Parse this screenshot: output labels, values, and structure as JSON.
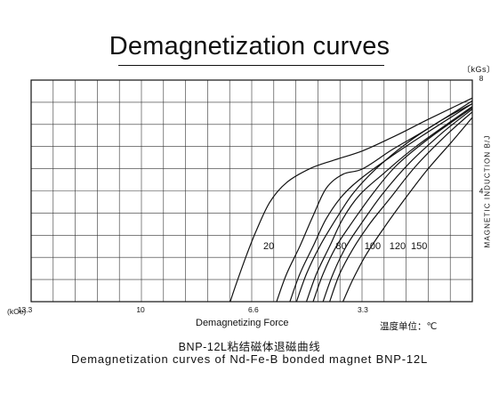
{
  "title": "Demagnetization curves",
  "caption_cn": "BNP-12L粘结磁体退磁曲线",
  "caption_en": "Demagnetization curves of Nd-Fe-B bonded magnet BNP-12L",
  "temperature_note": "温度单位：℃",
  "colors": {
    "line": "#111111",
    "grid": "#333333",
    "background": "#ffffff"
  },
  "chart_data": {
    "type": "line",
    "title": "Demagnetization curves",
    "xlabel": "Demagnetizing Force",
    "x_units": "(kOe)",
    "ylabel": "MAGNETIC INDUCTION B/J",
    "y_units": "〔kGs〕",
    "x_reversed": true,
    "xlim": [
      13.3,
      0
    ],
    "ylim": [
      0,
      8
    ],
    "x_ticks": [
      13.3,
      10,
      6.6,
      3.3
    ],
    "x_tick_labels": [
      "13.3",
      "10",
      "6.6",
      "3.3"
    ],
    "y_ticks": [
      4,
      8
    ],
    "y_tick_labels": [
      "4",
      "8"
    ],
    "grid": true,
    "series": [
      {
        "name": "20",
        "points": [
          [
            7.3,
            0
          ],
          [
            7.1,
            0.7
          ],
          [
            6.8,
            1.7
          ],
          [
            6.5,
            2.6
          ],
          [
            6.1,
            3.6
          ],
          [
            5.6,
            4.3
          ],
          [
            4.9,
            4.8
          ],
          [
            4.2,
            5.1
          ],
          [
            3.3,
            5.45
          ],
          [
            2.3,
            6.0
          ],
          [
            1.3,
            6.6
          ],
          [
            0,
            7.35
          ]
        ]
      },
      {
        "name": "80",
        "points": [
          [
            5.9,
            0
          ],
          [
            5.6,
            1.0
          ],
          [
            5.2,
            2.0
          ],
          [
            4.8,
            3.1
          ],
          [
            4.4,
            4.1
          ],
          [
            3.9,
            4.6
          ],
          [
            3.3,
            4.8
          ],
          [
            2.4,
            5.5
          ],
          [
            1.4,
            6.2
          ],
          [
            0,
            7.25
          ]
        ]
      },
      {
        "name": "100",
        "points": [
          [
            5.5,
            0
          ],
          [
            5.2,
            1.0
          ],
          [
            4.8,
            2.0
          ],
          [
            4.4,
            3.0
          ],
          [
            3.9,
            3.85
          ],
          [
            3.3,
            4.5
          ],
          [
            2.5,
            5.2
          ],
          [
            1.5,
            6.0
          ],
          [
            0,
            7.15
          ]
        ]
      },
      {
        "name": "120",
        "points": [
          [
            5.0,
            0
          ],
          [
            4.7,
            1.0
          ],
          [
            4.3,
            2.0
          ],
          [
            3.9,
            3.0
          ],
          [
            3.4,
            3.85
          ],
          [
            2.7,
            4.6
          ],
          [
            1.7,
            5.6
          ],
          [
            0,
            7.05
          ]
        ]
      },
      {
        "name": "150",
        "points": [
          [
            4.5,
            0
          ],
          [
            4.2,
            1.0
          ],
          [
            3.8,
            2.0
          ],
          [
            3.3,
            2.9
          ],
          [
            2.7,
            3.9
          ],
          [
            1.9,
            5.0
          ],
          [
            0.9,
            6.1
          ],
          [
            0,
            6.95
          ]
        ]
      },
      {
        "points": [
          [
            5.3,
            0
          ],
          [
            5.0,
            1.0
          ],
          [
            4.6,
            2.0
          ],
          [
            4.1,
            3.0
          ],
          [
            3.6,
            3.9
          ],
          [
            2.9,
            4.8
          ],
          [
            2.0,
            5.7
          ],
          [
            1.0,
            6.5
          ],
          [
            0,
            7.15
          ]
        ]
      },
      {
        "points": [
          [
            4.8,
            0
          ],
          [
            4.5,
            1.0
          ],
          [
            4.1,
            2.0
          ],
          [
            3.6,
            2.9
          ],
          [
            3.0,
            3.9
          ],
          [
            2.3,
            4.9
          ],
          [
            1.3,
            5.9
          ],
          [
            0,
            7.0
          ]
        ]
      },
      {
        "points": [
          [
            4.3,
            0
          ],
          [
            4.0,
            1.0
          ],
          [
            3.6,
            1.9
          ],
          [
            3.1,
            2.8
          ],
          [
            2.5,
            3.7
          ],
          [
            1.7,
            4.9
          ],
          [
            0.8,
            6.0
          ],
          [
            0,
            6.85
          ]
        ]
      },
      {
        "points": [
          [
            3.9,
            0
          ],
          [
            3.6,
            0.8
          ],
          [
            3.2,
            1.7
          ],
          [
            2.7,
            2.6
          ],
          [
            2.1,
            3.6
          ],
          [
            1.4,
            4.7
          ],
          [
            0.6,
            5.8
          ],
          [
            0,
            6.65
          ]
        ]
      }
    ],
    "annotations": [
      "20",
      "80",
      "100",
      "120",
      "150"
    ]
  }
}
